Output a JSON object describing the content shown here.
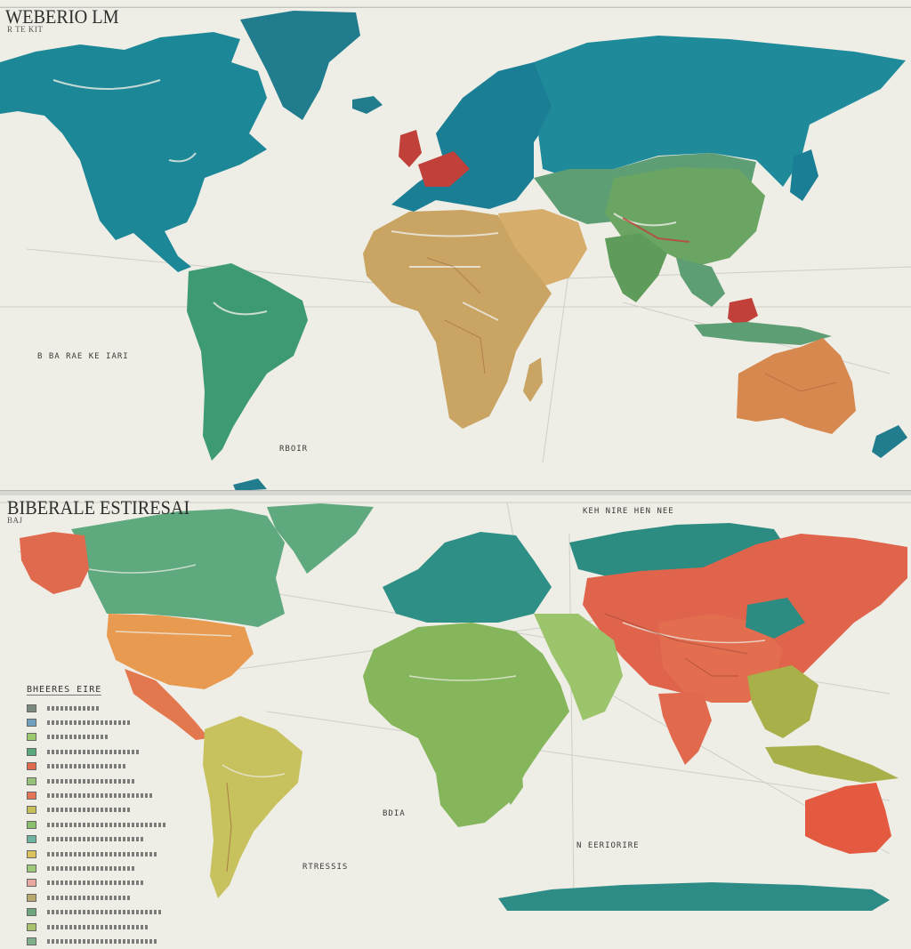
{
  "top_map": {
    "title": "WEBERIO LM",
    "subtitle": "R TE KIT",
    "left_caption": "B BA RAE KE IARI",
    "bottom_caption": "RBOIR",
    "colors": {
      "north_america": "#1c8797",
      "greenland": "#217c8d",
      "south_america": "#3e9a72",
      "europe": "#1a7f94",
      "eurasia_north": "#1f8a9a",
      "central_asia": "#5e9e74",
      "china": "#6aa563",
      "africa": "#c9a463",
      "middle_east": "#d6ad6b",
      "india": "#5f9b5a",
      "australia": "#d7884e",
      "accent_red": "#c2403a"
    }
  },
  "bottom_map": {
    "title": "BIBERALE ESTIRESAI",
    "subtitle": "BAJ",
    "top_caption": "KEH NIRE HEN NEE",
    "africa_caption": "BDIA",
    "south_caption": "RTRESSIS",
    "right_caption": "N EERIORIRE",
    "legend_title": "BHEERES EIRE",
    "legend_colors": [
      "#7a8a7e",
      "#6fa0c0",
      "#9cc96e",
      "#5aa87d",
      "#e06a4e",
      "#96c27a",
      "#e37556",
      "#c7c05a",
      "#8bbf6c",
      "#6fb3a1",
      "#d9c35a",
      "#9fc97a",
      "#e8a8a0",
      "#b9a86e",
      "#6ea67e",
      "#a8c26e",
      "#7fb08a"
    ],
    "colors": {
      "north_america": "#5ea97e",
      "alaska": "#e06a4e",
      "usa": "#e89a50",
      "mexico": "#e3784f",
      "south_america": "#c8c25e",
      "europe": "#2e8f86",
      "africa": "#86b65c",
      "middle_east": "#9cc46a",
      "russia": "#e0644c",
      "siberia": "#2c8c82",
      "china": "#e36d4f",
      "india": "#e0694e",
      "southeast_asia": "#a8b04a",
      "australia": "#e35a40",
      "antarctica": "#2e8c86"
    }
  }
}
